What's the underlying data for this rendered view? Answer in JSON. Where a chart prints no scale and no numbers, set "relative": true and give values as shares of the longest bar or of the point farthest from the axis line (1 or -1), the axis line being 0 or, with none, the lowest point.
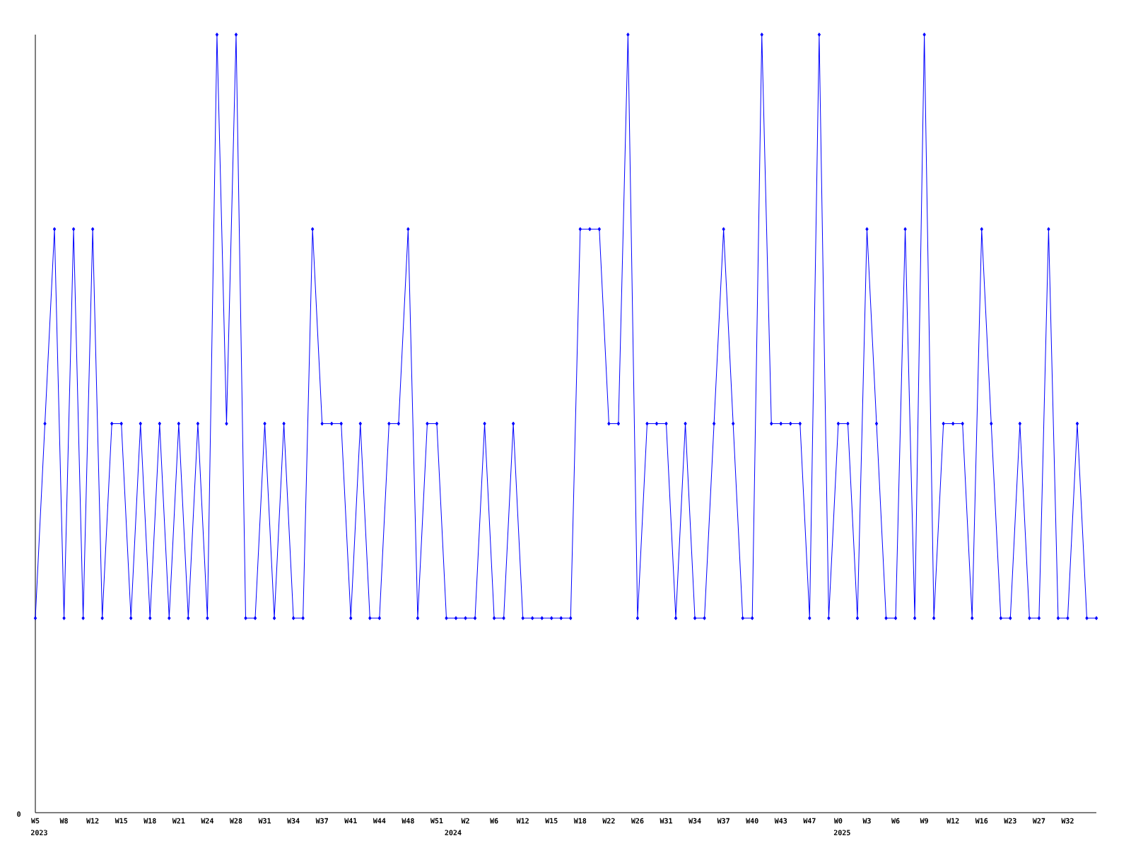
{
  "chart_data": {
    "type": "line",
    "relative": true,
    "color": "#0000ff",
    "marker": "diamond",
    "line_style": "solid",
    "categories": [
      "W5",
      null,
      null,
      "W8",
      null,
      null,
      "W12",
      null,
      null,
      "W15",
      null,
      null,
      "W18",
      null,
      null,
      "W21",
      null,
      null,
      "W24",
      null,
      null,
      "W28",
      null,
      null,
      "W31",
      null,
      null,
      "W34",
      null,
      null,
      "W37",
      null,
      null,
      "W41",
      null,
      null,
      "W44",
      null,
      null,
      "W48",
      null,
      null,
      "W51",
      null,
      null,
      "W2",
      null,
      null,
      "W6",
      null,
      null,
      "W12",
      null,
      null,
      "W15",
      null,
      null,
      "W18",
      null,
      null,
      "W22",
      null,
      null,
      "W26",
      null,
      null,
      "W31",
      null,
      null,
      "W34",
      null,
      null,
      "W37",
      null,
      null,
      "W40",
      null,
      null,
      "W43",
      null,
      null,
      "W47",
      null,
      null,
      "W0",
      null,
      null,
      "W3",
      null,
      null,
      "W6",
      null,
      null,
      "W9",
      null,
      null,
      "W12",
      null,
      null,
      "W16",
      null,
      null,
      "W23",
      null,
      null,
      "W27",
      null,
      null,
      "W32",
      null,
      null,
      null
    ],
    "values": [
      0.25,
      0.5,
      0.75,
      0.25,
      0.75,
      0.25,
      0.75,
      0.25,
      0.5,
      0.5,
      0.25,
      0.5,
      0.25,
      0.5,
      0.25,
      0.5,
      0.25,
      0.5,
      0.25,
      1,
      0.5,
      1,
      0.25,
      0.25,
      0.5,
      0.25,
      0.5,
      0.25,
      0.25,
      0.75,
      0.5,
      0.5,
      0.5,
      0.25,
      0.5,
      0.25,
      0.25,
      0.5,
      0.5,
      0.75,
      0.25,
      0.5,
      0.5,
      0.25,
      0.25,
      0.25,
      0.25,
      0.5,
      0.25,
      0.25,
      0.5,
      0.25,
      0.25,
      0.25,
      0.25,
      0.25,
      0.25,
      0.75,
      0.75,
      0.75,
      0.5,
      0.5,
      1,
      0.25,
      0.5,
      0.5,
      0.5,
      0.25,
      0.5,
      0.25,
      0.25,
      0.5,
      0.75,
      0.5,
      0.25,
      0.25,
      1,
      0.5,
      0.5,
      0.5,
      0.5,
      0.25,
      1,
      0.25,
      0.5,
      0.5,
      0.25,
      0.75,
      0.5,
      0.25,
      0.25,
      0.75,
      0.25,
      1,
      0.25,
      0.5,
      0.5,
      0.5,
      0.25,
      0.75,
      0.5,
      0.25,
      0.25,
      0.5,
      0.25,
      0.25,
      0.75,
      0.25,
      0.25,
      0.5,
      0.25,
      0.25
    ],
    "annotations": [
      "0",
      "2023",
      "2024",
      "2025"
    ]
  }
}
